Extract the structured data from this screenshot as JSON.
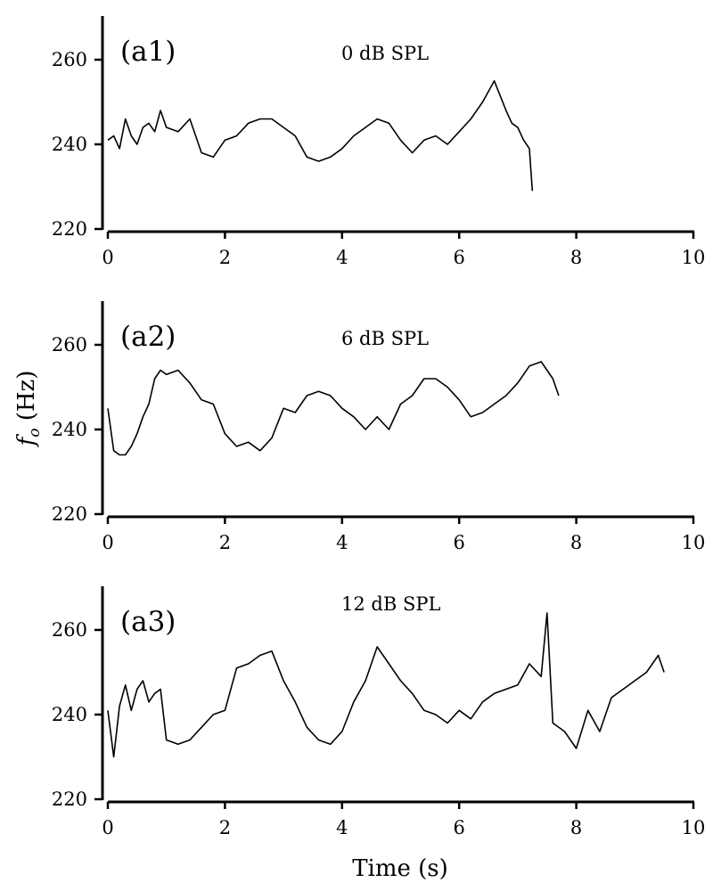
{
  "figure": {
    "xlabel": "Time (s)",
    "ylabel_main": "f",
    "ylabel_sub": "o",
    "ylabel_unit": " (Hz)"
  },
  "chart_data": [
    {
      "type": "line",
      "panel_label": "(a1)",
      "condition": "0 dB SPL",
      "xlim": [
        0,
        10
      ],
      "ylim": [
        220,
        270
      ],
      "x_ticks": [
        0,
        2,
        4,
        6,
        8,
        10
      ],
      "y_ticks": [
        220,
        240,
        260
      ],
      "x_tick_labels": [
        "0",
        "2",
        "4",
        "6",
        "8",
        "10"
      ],
      "y_tick_labels": [
        "220",
        "240",
        "260"
      ],
      "grid": false,
      "series": [
        {
          "x": [
            0.0,
            0.1,
            0.2,
            0.3,
            0.4,
            0.5,
            0.6,
            0.7,
            0.8,
            0.9,
            1.0,
            1.2,
            1.4,
            1.6,
            1.8,
            2.0,
            2.2,
            2.4,
            2.6,
            2.8,
            3.0,
            3.2,
            3.4,
            3.6,
            3.8,
            4.0,
            4.2,
            4.4,
            4.6,
            4.8,
            5.0,
            5.2,
            5.4,
            5.6,
            5.8,
            6.0,
            6.2,
            6.4,
            6.6,
            6.8,
            6.9,
            7.0,
            7.1,
            7.2,
            7.25
          ],
          "y": [
            241,
            242,
            239,
            246,
            242,
            240,
            244,
            245,
            243,
            248,
            244,
            243,
            246,
            238,
            237,
            241,
            242,
            245,
            246,
            246,
            244,
            242,
            237,
            236,
            237,
            239,
            242,
            244,
            246,
            245,
            241,
            238,
            241,
            242,
            240,
            243,
            246,
            250,
            255,
            248,
            245,
            244,
            241,
            239,
            229
          ]
        }
      ]
    },
    {
      "type": "line",
      "panel_label": "(a2)",
      "condition": "6 dB SPL",
      "xlim": [
        0,
        10
      ],
      "ylim": [
        220,
        270
      ],
      "x_ticks": [
        0,
        2,
        4,
        6,
        8,
        10
      ],
      "y_ticks": [
        220,
        240,
        260
      ],
      "x_tick_labels": [
        "0",
        "2",
        "4",
        "6",
        "8",
        "10"
      ],
      "y_tick_labels": [
        "220",
        "240",
        "260"
      ],
      "grid": false,
      "series": [
        {
          "x": [
            0.0,
            0.1,
            0.2,
            0.3,
            0.4,
            0.5,
            0.6,
            0.7,
            0.8,
            0.9,
            1.0,
            1.2,
            1.4,
            1.6,
            1.8,
            2.0,
            2.2,
            2.4,
            2.6,
            2.8,
            3.0,
            3.2,
            3.4,
            3.6,
            3.8,
            4.0,
            4.2,
            4.4,
            4.6,
            4.8,
            5.0,
            5.2,
            5.4,
            5.6,
            5.8,
            6.0,
            6.2,
            6.4,
            6.6,
            6.8,
            7.0,
            7.2,
            7.4,
            7.6,
            7.7
          ],
          "y": [
            245,
            235,
            234,
            234,
            236,
            239,
            243,
            246,
            252,
            254,
            253,
            254,
            251,
            247,
            246,
            239,
            236,
            237,
            235,
            238,
            245,
            244,
            248,
            249,
            248,
            245,
            243,
            240,
            243,
            240,
            246,
            248,
            252,
            252,
            250,
            247,
            243,
            244,
            246,
            248,
            251,
            255,
            256,
            252,
            248
          ]
        }
      ]
    },
    {
      "type": "line",
      "panel_label": "(a3)",
      "condition": "12 dB SPL",
      "xlim": [
        0,
        10
      ],
      "ylim": [
        220,
        270
      ],
      "x_ticks": [
        0,
        2,
        4,
        6,
        8,
        10
      ],
      "y_ticks": [
        220,
        240,
        260
      ],
      "x_tick_labels": [
        "0",
        "2",
        "4",
        "6",
        "8",
        "10"
      ],
      "y_tick_labels": [
        "220",
        "240",
        "260"
      ],
      "grid": false,
      "series": [
        {
          "x": [
            0.0,
            0.1,
            0.2,
            0.3,
            0.4,
            0.5,
            0.6,
            0.7,
            0.8,
            0.9,
            1.0,
            1.2,
            1.4,
            1.6,
            1.8,
            2.0,
            2.2,
            2.4,
            2.6,
            2.8,
            3.0,
            3.2,
            3.4,
            3.6,
            3.8,
            4.0,
            4.2,
            4.4,
            4.6,
            4.8,
            5.0,
            5.2,
            5.4,
            5.6,
            5.8,
            6.0,
            6.2,
            6.4,
            6.6,
            6.8,
            7.0,
            7.2,
            7.4,
            7.5,
            7.6,
            7.8,
            8.0,
            8.2,
            8.4,
            8.6,
            8.8,
            9.0,
            9.2,
            9.4,
            9.5
          ],
          "y": [
            241,
            230,
            242,
            247,
            241,
            246,
            248,
            243,
            245,
            246,
            234,
            233,
            234,
            237,
            240,
            241,
            251,
            252,
            254,
            255,
            248,
            243,
            237,
            234,
            233,
            236,
            243,
            248,
            256,
            252,
            248,
            245,
            241,
            240,
            238,
            241,
            239,
            243,
            245,
            246,
            247,
            252,
            249,
            264,
            238,
            236,
            232,
            241,
            236,
            244,
            246,
            248,
            250,
            254,
            250
          ]
        }
      ]
    }
  ]
}
